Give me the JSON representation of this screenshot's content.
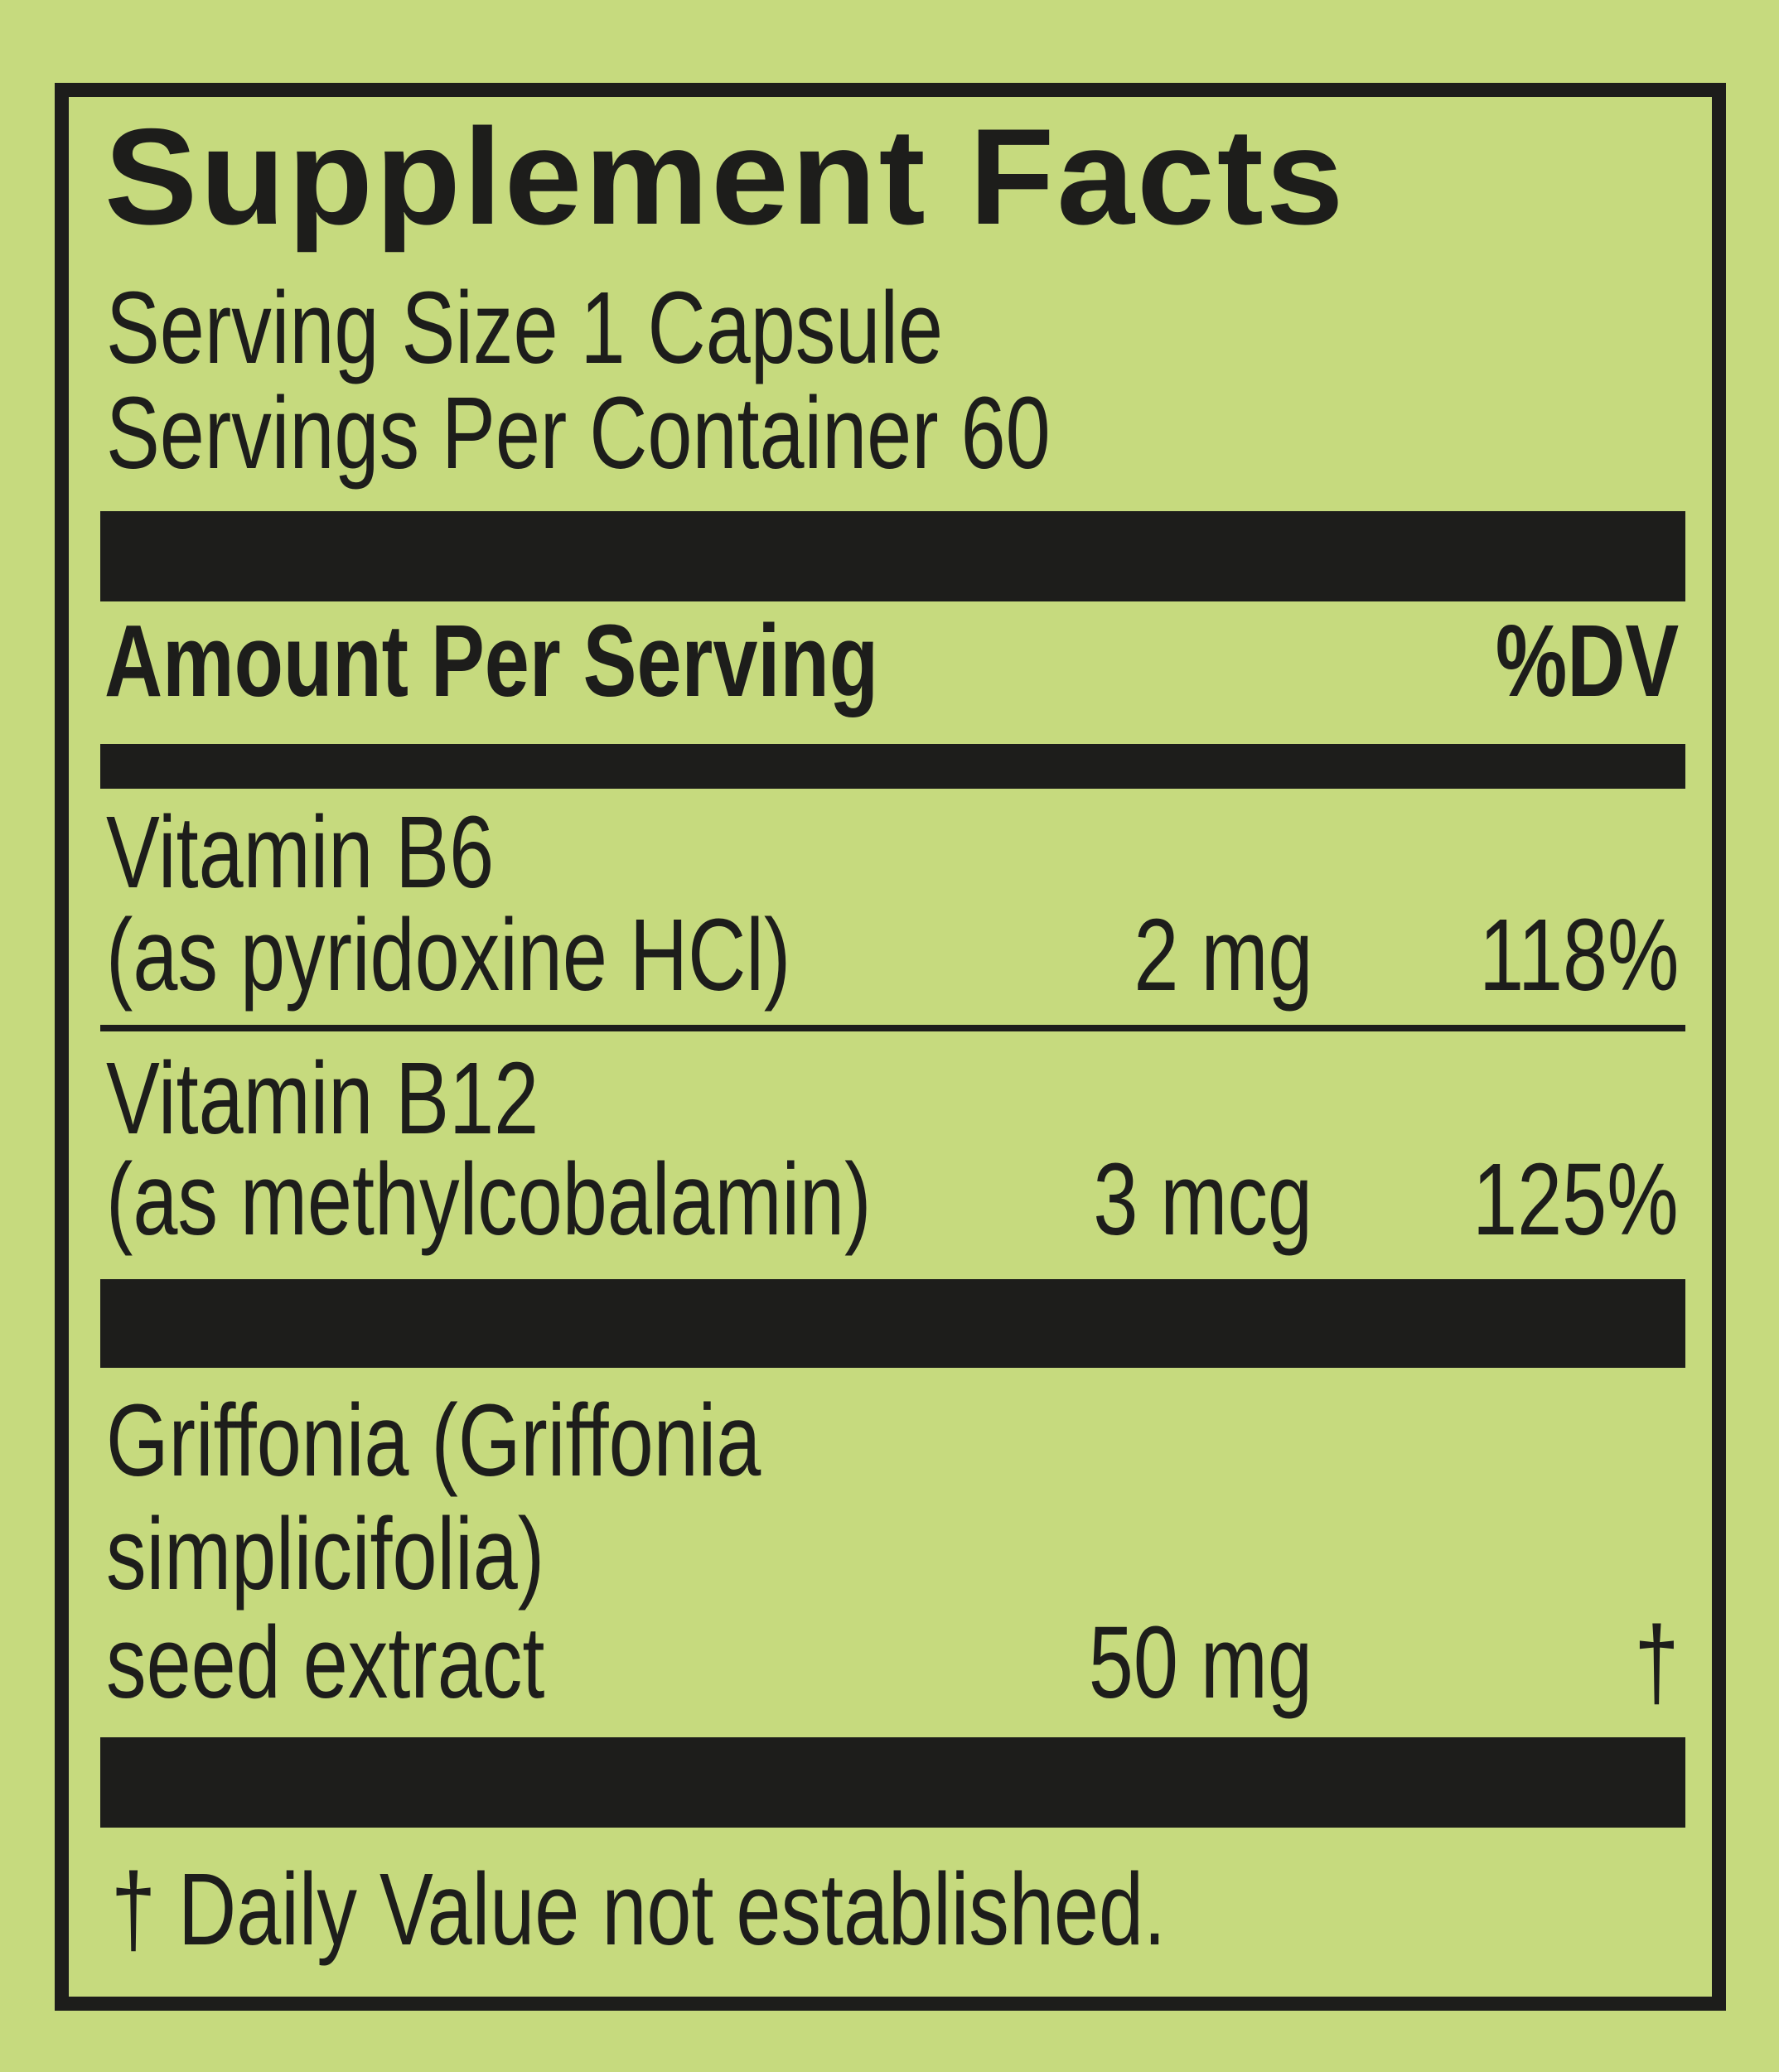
{
  "label": {
    "title": "Supplement Facts",
    "serving_size": "Serving Size 1 Capsule",
    "servings_per_container": "Servings Per Container 60",
    "header": {
      "amount": "Amount Per Serving",
      "dv": "%DV"
    },
    "nutrients": [
      {
        "name_line1": "Vitamin B6",
        "name_line2": "(as pyridoxine HCl)",
        "amount": "2 mg",
        "dv": "118%"
      },
      {
        "name_line1": "Vitamin B12",
        "name_line2": "(as methylcobalamin)",
        "amount": "3 mcg",
        "dv": "125%"
      }
    ],
    "other": [
      {
        "name_line1": "Griffonia (Griffonia",
        "name_line2": "simplicifolia)",
        "name_line3": "seed extract",
        "amount": "50 mg",
        "dv": "†"
      }
    ],
    "footnote": "† Daily Value not established."
  },
  "colors": {
    "background": "#c6da7e",
    "ink": "#1d1d1b"
  }
}
